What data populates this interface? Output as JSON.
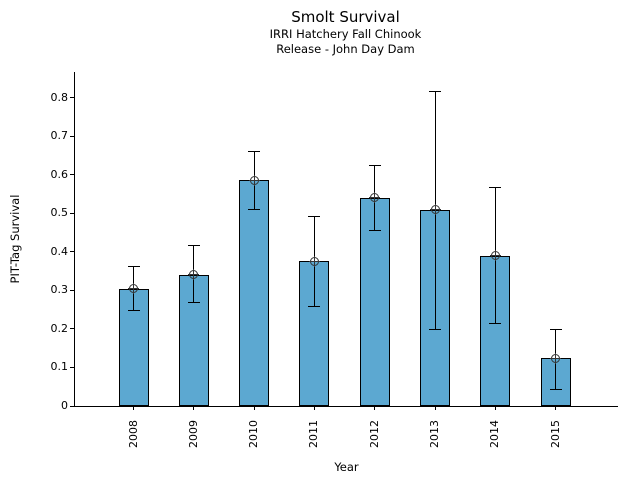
{
  "chart_data": {
    "type": "bar",
    "title": "Smolt Survival",
    "subtitle_lines": [
      "IRRI Hatchery Fall Chinook",
      "Release - John Day Dam"
    ],
    "xlabel": "Year",
    "ylabel": "PIT-Tag Survival",
    "categories": [
      "2008",
      "2009",
      "2010",
      "2011",
      "2012",
      "2013",
      "2014",
      "2015"
    ],
    "values": [
      0.304,
      0.341,
      0.586,
      0.376,
      0.54,
      0.509,
      0.39,
      0.124
    ],
    "error_low": [
      0.248,
      0.269,
      0.51,
      0.259,
      0.455,
      0.199,
      0.213,
      0.043
    ],
    "error_high": [
      0.362,
      0.417,
      0.661,
      0.492,
      0.625,
      0.816,
      0.567,
      0.198
    ],
    "yticks": [
      0,
      0.1,
      0.2,
      0.3,
      0.4,
      0.5,
      0.6,
      0.7,
      0.8
    ],
    "ytick_labels": [
      "0",
      "0.1",
      "0.2",
      "0.3",
      "0.4",
      "0.5",
      "0.6",
      "0.7",
      "0.8"
    ],
    "ylim": [
      0,
      0.867
    ],
    "xtick_rotation": 90,
    "grid": false,
    "legend": null,
    "bar_color": "#5CA8D1",
    "bar_edge_color": "#000000",
    "error_color": "#000000",
    "marker": "circle-plus",
    "marker_color": "#333333"
  }
}
